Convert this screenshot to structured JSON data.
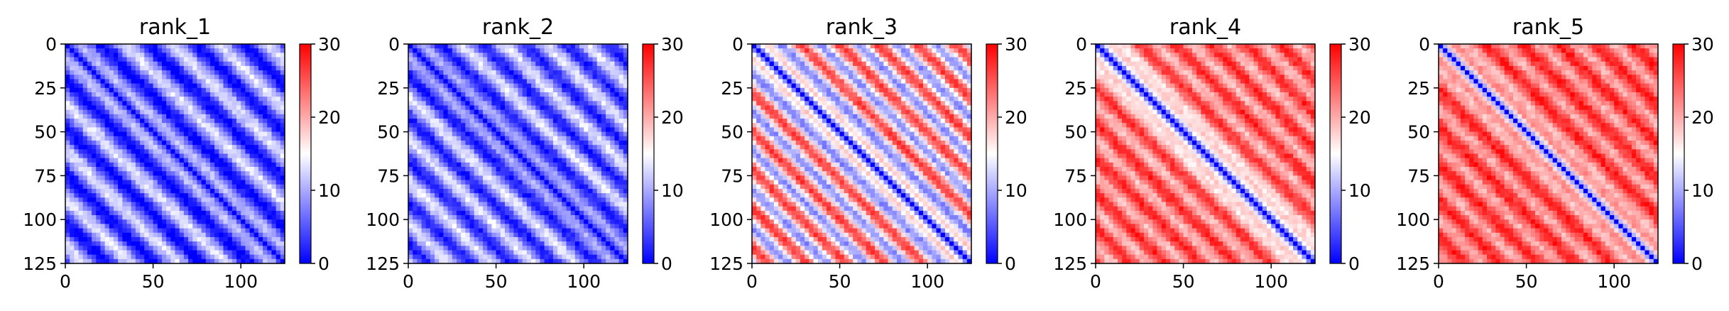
{
  "chart_data": [
    {
      "type": "heatmap",
      "title": "rank_1",
      "xlim": [
        0,
        125
      ],
      "ylim": [
        125,
        0
      ],
      "xticks": [
        0,
        50,
        100
      ],
      "yticks": [
        0,
        25,
        50,
        75,
        100,
        125
      ],
      "colorbar": {
        "colormap": "bwr",
        "min": 0,
        "max": 30,
        "ticks": [
          0,
          10,
          20,
          30
        ]
      },
      "pattern": {
        "off_diagonal_level": 0.22,
        "band_amplitude": 0.22,
        "band_period": 27,
        "diagonal_width": 4
      }
    },
    {
      "type": "heatmap",
      "title": "rank_2",
      "xlim": [
        0,
        125
      ],
      "ylim": [
        125,
        0
      ],
      "xticks": [
        0,
        50,
        100
      ],
      "yticks": [
        0,
        25,
        50,
        75,
        100,
        125
      ],
      "colorbar": {
        "colormap": "bwr",
        "min": 0,
        "max": 30,
        "ticks": [
          0,
          10,
          20,
          30
        ]
      },
      "pattern": {
        "off_diagonal_level": 0.25,
        "band_amplitude": 0.2,
        "band_period": 24,
        "diagonal_width": 5
      }
    },
    {
      "type": "heatmap",
      "title": "rank_3",
      "xlim": [
        0,
        125
      ],
      "ylim": [
        125,
        0
      ],
      "xticks": [
        0,
        50,
        100
      ],
      "yticks": [
        0,
        25,
        50,
        75,
        100,
        125
      ],
      "colorbar": {
        "colormap": "bwr",
        "min": 0,
        "max": 30,
        "ticks": [
          0,
          10,
          20,
          30
        ]
      },
      "pattern": {
        "off_diagonal_level": 0.58,
        "band_amplitude": 0.3,
        "band_period": 22,
        "diagonal_width": 6
      }
    },
    {
      "type": "heatmap",
      "title": "rank_4",
      "xlim": [
        0,
        125
      ],
      "ylim": [
        125,
        0
      ],
      "xticks": [
        0,
        50,
        100
      ],
      "yticks": [
        0,
        25,
        50,
        75,
        100,
        125
      ],
      "colorbar": {
        "colormap": "bwr",
        "min": 0,
        "max": 30,
        "ticks": [
          0,
          10,
          20,
          30
        ]
      },
      "pattern": {
        "off_diagonal_level": 0.78,
        "band_amplitude": 0.15,
        "band_period": 20,
        "diagonal_width": 7
      }
    },
    {
      "type": "heatmap",
      "title": "rank_5",
      "xlim": [
        0,
        125
      ],
      "ylim": [
        125,
        0
      ],
      "xticks": [
        0,
        50,
        100
      ],
      "yticks": [
        0,
        25,
        50,
        75,
        100,
        125
      ],
      "colorbar": {
        "colormap": "bwr",
        "min": 0,
        "max": 30,
        "ticks": [
          0,
          10,
          20,
          30
        ]
      },
      "pattern": {
        "off_diagonal_level": 0.8,
        "band_amplitude": 0.14,
        "band_period": 21,
        "diagonal_width": 5
      }
    }
  ]
}
